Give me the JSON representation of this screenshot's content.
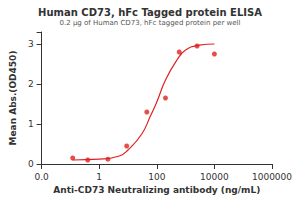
{
  "chart_data": {
    "type": "scatter",
    "title": "Human CD73, hFc Tagged protein ELISA",
    "subtitle": "0.2 μg of Human CD73, hFc tagged protein per well",
    "x_label": "Anti-CD73 Neutralizing antibody (ng/mL)",
    "y_label": "Mean Abs.(OD450)",
    "log": "x",
    "grid": false,
    "color": "#e02020",
    "series": [
      {
        "type": "scatter",
        "marker": "circle",
        "color": "#e02020",
        "x": [
          0.12,
          0.4,
          2,
          9,
          45,
          200,
          600,
          2500,
          10000
        ],
        "values": [
          0.15,
          0.1,
          0.12,
          0.45,
          1.3,
          1.65,
          2.8,
          2.95,
          2.75
        ]
      },
      {
        "type": "line",
        "line_style": "solid",
        "color": "#e02020",
        "x": [
          0.12,
          1,
          5,
          10,
          30,
          60,
          100,
          200,
          500,
          1000,
          3000,
          10000
        ],
        "values": [
          0.1,
          0.12,
          0.2,
          0.35,
          0.75,
          1.2,
          1.55,
          2.1,
          2.6,
          2.85,
          2.97,
          3.0
        ]
      }
    ],
    "xlim": [
      0.01,
      1000000
    ],
    "xticks": [
      {
        "value": 0.01,
        "label": "0.0"
      },
      1,
      100,
      10000,
      1000000
    ],
    "ylim": [
      0,
      3.3
    ],
    "yticks": [
      0,
      1,
      2,
      3
    ]
  }
}
